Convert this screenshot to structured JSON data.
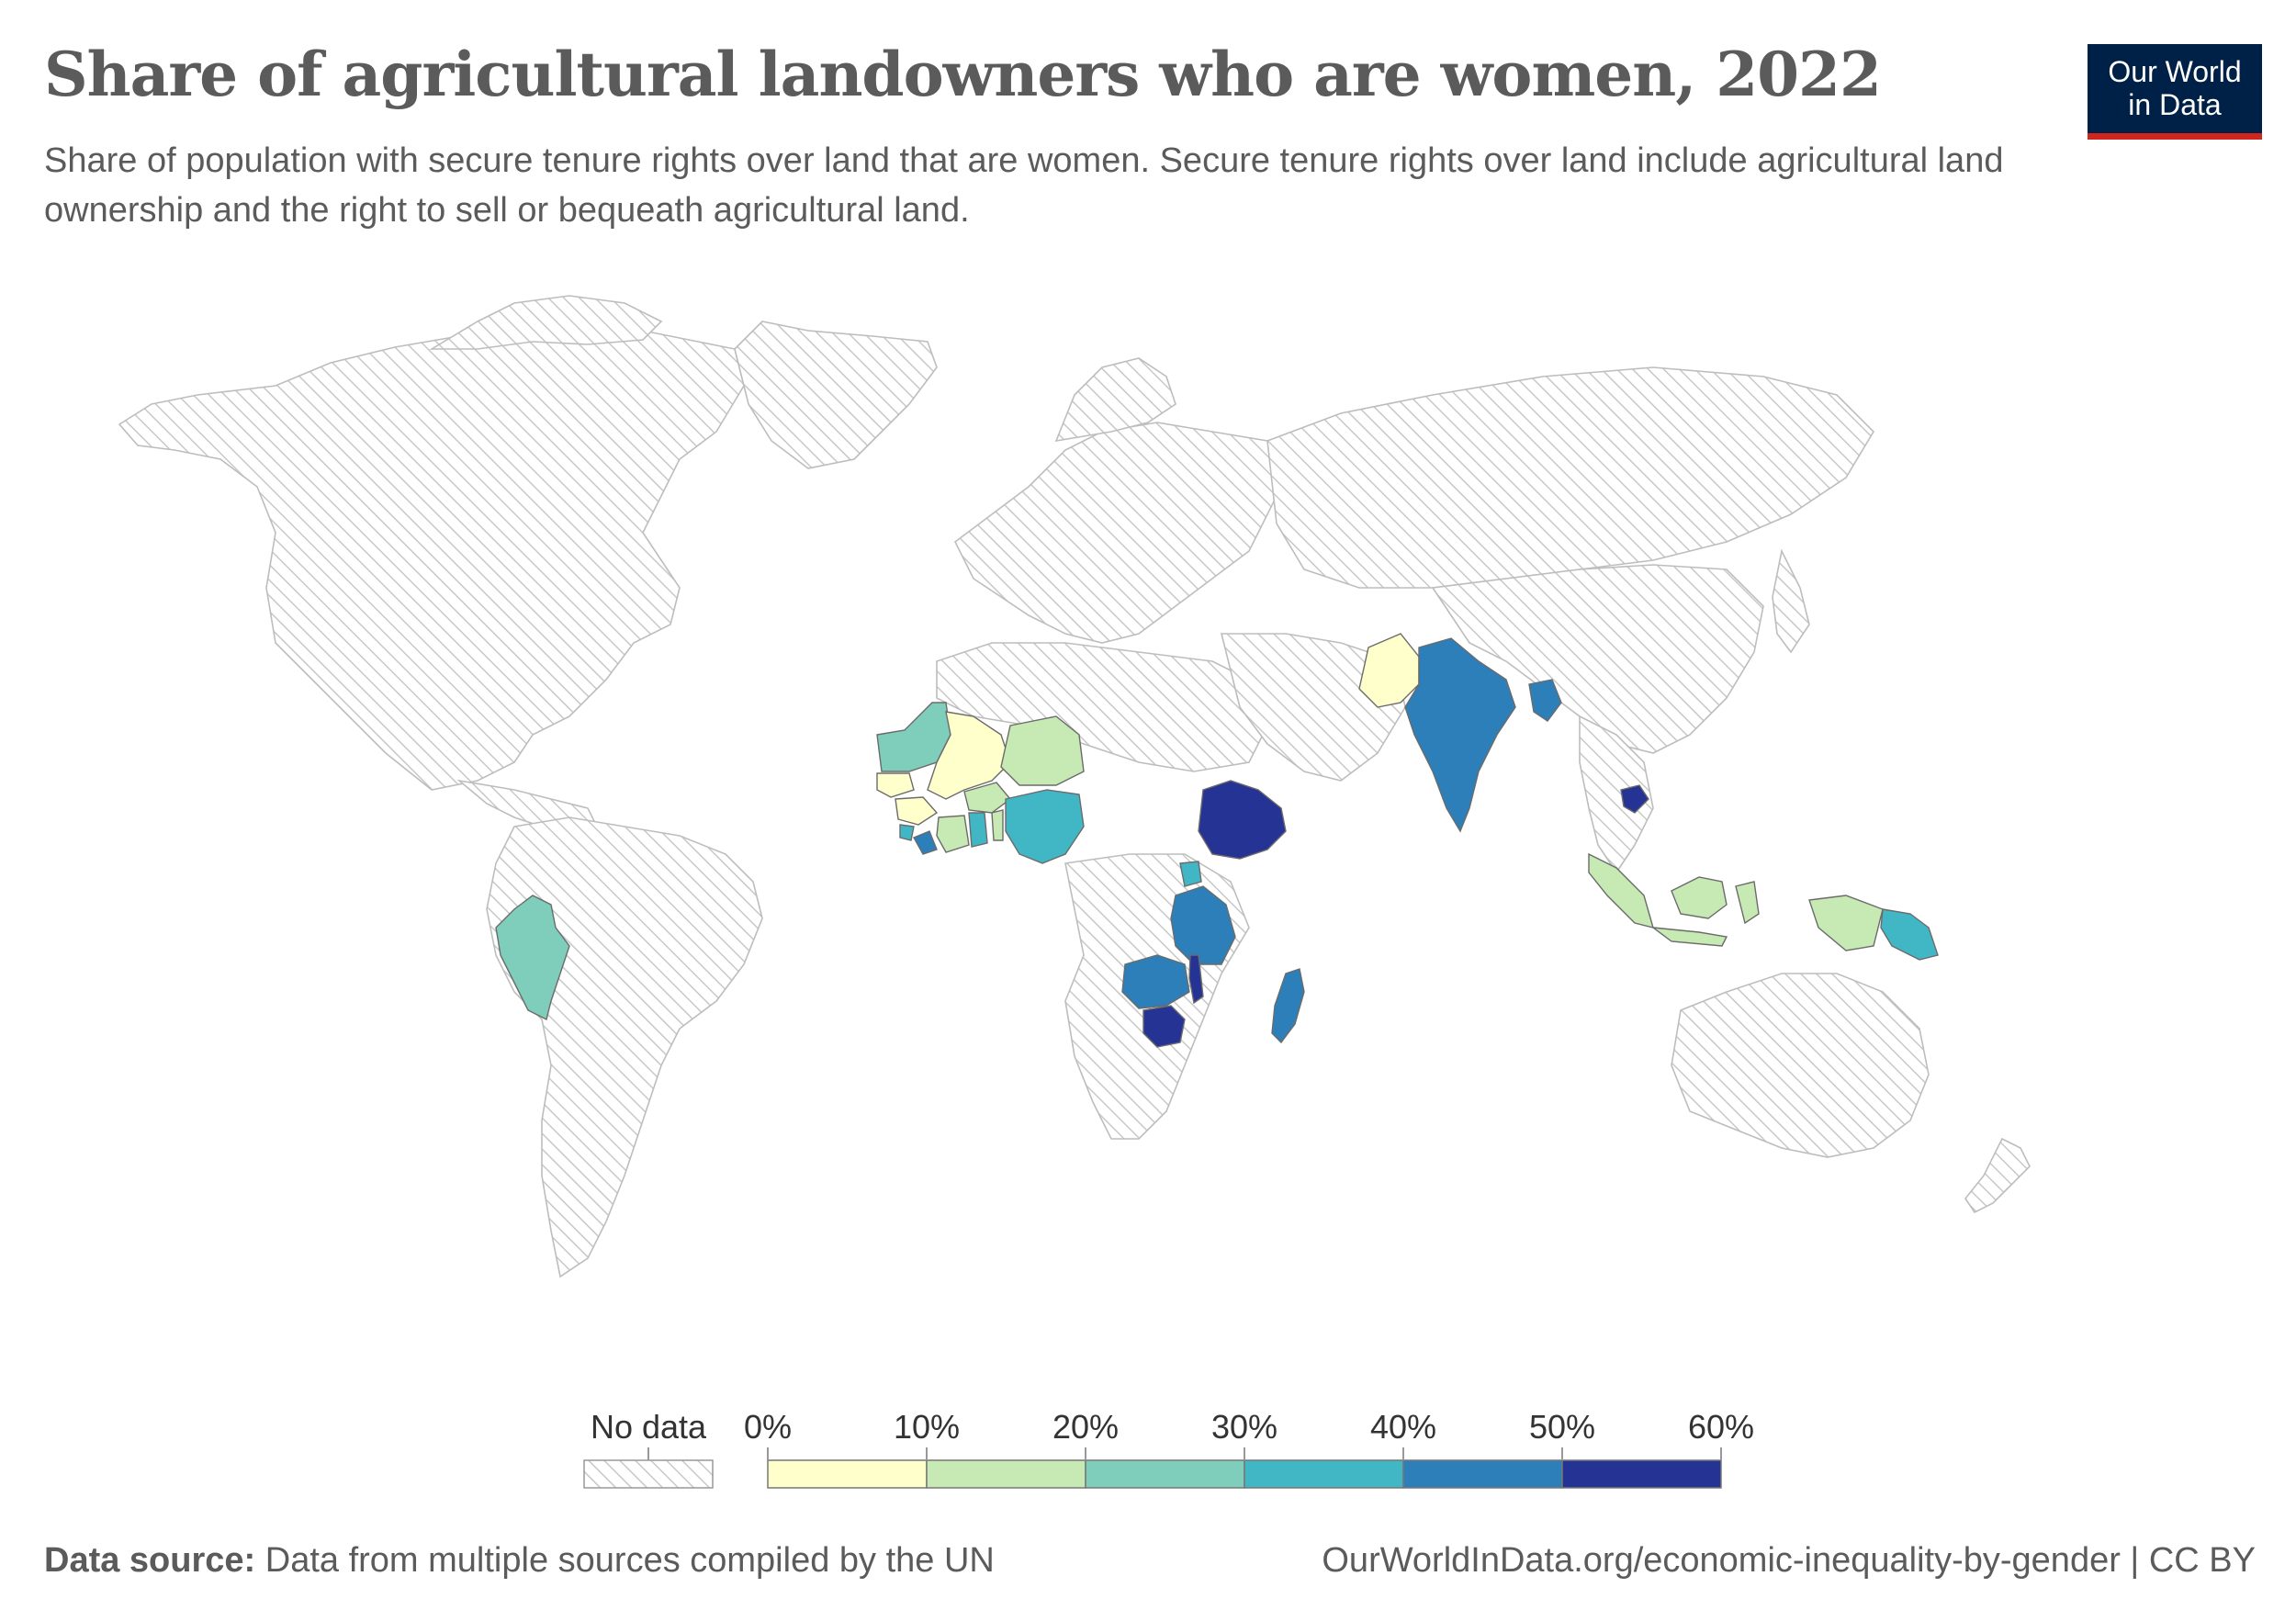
{
  "header": {
    "title": "Share of agricultural landowners who are women, 2022",
    "subtitle": "Share of population with secure tenure rights over land that are women. Secure tenure rights over land include agricultural land ownership and the right to sell or bequeath agricultural land."
  },
  "logo": {
    "line1": "Our World",
    "line2": "in Data"
  },
  "legend": {
    "no_data_label": "No data",
    "bins": [
      {
        "from": 0,
        "to": 10,
        "color": "#ffffcc"
      },
      {
        "from": 10,
        "to": 20,
        "color": "#c7e9b4"
      },
      {
        "from": 20,
        "to": 30,
        "color": "#7fcdbb"
      },
      {
        "from": 30,
        "to": 40,
        "color": "#41b6c4"
      },
      {
        "from": 40,
        "to": 50,
        "color": "#2c7fb8"
      },
      {
        "from": 50,
        "to": 60,
        "color": "#253494"
      }
    ],
    "tick_labels": [
      "0%",
      "10%",
      "20%",
      "30%",
      "40%",
      "50%",
      "60%"
    ]
  },
  "chart_data": {
    "type": "choropleth",
    "title": "Share of agricultural landowners who are women, 2022",
    "unit": "%",
    "regions_with_data": [
      {
        "country": "Peru",
        "bin": "20–30%"
      },
      {
        "country": "Mauritania",
        "bin": "20–30%"
      },
      {
        "country": "Mali",
        "bin": "0–10%"
      },
      {
        "country": "Senegal",
        "bin": "0–10%"
      },
      {
        "country": "Niger",
        "bin": "10–20%"
      },
      {
        "country": "Burkina Faso",
        "bin": "10–20%"
      },
      {
        "country": "Guinea",
        "bin": "0–10%"
      },
      {
        "country": "Sierra Leone",
        "bin": "30–40%"
      },
      {
        "country": "Liberia",
        "bin": "40–50%"
      },
      {
        "country": "Côte d'Ivoire",
        "bin": "10–20%"
      },
      {
        "country": "Ghana",
        "bin": "30–40%"
      },
      {
        "country": "Benin",
        "bin": "10–20%"
      },
      {
        "country": "Nigeria",
        "bin": "30–40%"
      },
      {
        "country": "Ethiopia",
        "bin": "50–60%"
      },
      {
        "country": "Uganda",
        "bin": "30–40%"
      },
      {
        "country": "Tanzania",
        "bin": "40–50%"
      },
      {
        "country": "Zambia",
        "bin": "40–50%"
      },
      {
        "country": "Malawi",
        "bin": "50–60%"
      },
      {
        "country": "Zimbabwe",
        "bin": "50–60%"
      },
      {
        "country": "Madagascar",
        "bin": "40–50%"
      },
      {
        "country": "Pakistan",
        "bin": "0–10%"
      },
      {
        "country": "India",
        "bin": "40–50%"
      },
      {
        "country": "Bangladesh",
        "bin": "40–50%"
      },
      {
        "country": "Cambodia",
        "bin": "50–60%"
      },
      {
        "country": "Indonesia",
        "bin": "10–20%"
      },
      {
        "country": "Papua New Guinea",
        "bin": "30–40%"
      }
    ]
  },
  "footer": {
    "source_label": "Data source:",
    "source_text": "Data from multiple sources compiled by the UN",
    "url_text": "OurWorldInData.org/economic-inequality-by-gender | CC BY"
  }
}
